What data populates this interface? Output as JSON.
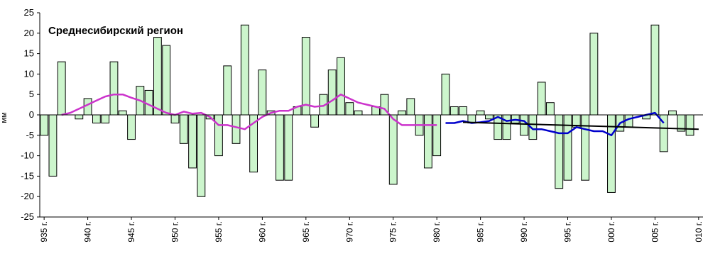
{
  "chart_data": {
    "type": "bar",
    "title": "Среднесибирский регион",
    "xlabel": "",
    "ylabel": "мм",
    "ylim": [
      -25,
      25
    ],
    "yticks": [
      25,
      20,
      15,
      10,
      5,
      0,
      -5,
      -10,
      -15,
      -20,
      -25
    ],
    "xlim": [
      1934.5,
      2010.5
    ],
    "x_tick_years": [
      1935,
      1940,
      1945,
      1950,
      1955,
      1960,
      1965,
      1970,
      1975,
      1980,
      1985,
      1990,
      1995,
      2000,
      2005,
      2010
    ],
    "x_tick_labels": [
      "935 г.",
      "940 г.",
      "945 г.",
      "950 г.",
      "955 г.",
      "960 г.",
      "965 г.",
      "970 г.",
      "975 г.",
      "980 г.",
      "985 г.",
      "990 г.",
      "995 г.",
      "000 г.",
      "005 г.",
      "010 г."
    ],
    "x": [
      1935,
      1936,
      1937,
      1938,
      1939,
      1940,
      1941,
      1942,
      1943,
      1944,
      1945,
      1946,
      1947,
      1948,
      1949,
      1950,
      1951,
      1952,
      1953,
      1954,
      1955,
      1956,
      1957,
      1958,
      1959,
      1960,
      1961,
      1962,
      1963,
      1964,
      1965,
      1966,
      1967,
      1968,
      1969,
      1970,
      1971,
      1972,
      1973,
      1974,
      1975,
      1976,
      1977,
      1978,
      1979,
      1980,
      1981,
      1982,
      1983,
      1984,
      1985,
      1986,
      1987,
      1988,
      1989,
      1990,
      1991,
      1992,
      1993,
      1994,
      1995,
      1996,
      1997,
      1998,
      1999,
      2000,
      2001,
      2002,
      2003,
      2004,
      2005,
      2006,
      2007,
      2008,
      2009,
      2010
    ],
    "values": [
      -5,
      -15,
      13,
      0,
      -1,
      4,
      -2,
      -2,
      13,
      1,
      -6,
      7,
      6,
      19,
      17,
      -2,
      -7,
      -13,
      -20,
      -1,
      -10,
      12,
      -7,
      22,
      -14,
      11,
      1,
      -16,
      -16,
      2,
      19,
      -3,
      5,
      11,
      14,
      3,
      1,
      0,
      2,
      5,
      -17,
      1,
      4,
      -5,
      -13,
      -10,
      10,
      2,
      2,
      -2,
      1,
      -1,
      -6,
      -6,
      -2,
      -5,
      -6,
      8,
      3,
      -18,
      -16,
      -3,
      -16,
      20,
      0,
      -19,
      -4,
      -3,
      0,
      -1,
      22,
      -9,
      1,
      -4,
      -5,
      0
    ],
    "bar_color": "#ccf5cc",
    "bar_edge_color": "#000000",
    "grid": false,
    "series": [
      {
        "type": "line",
        "color": "#cc33cc",
        "x": [
          1937,
          1938,
          1939,
          1940,
          1941,
          1942,
          1943,
          1944,
          1945,
          1946,
          1947,
          1948,
          1949,
          1950,
          1951,
          1952,
          1953,
          1954,
          1955,
          1956,
          1957,
          1958,
          1959,
          1960,
          1961,
          1962,
          1963,
          1964,
          1965,
          1966,
          1967,
          1968,
          1969,
          1970,
          1971,
          1972,
          1973,
          1974,
          1975,
          1976,
          1977,
          1978,
          1979,
          1980
        ],
        "values": [
          0,
          0.5,
          1.5,
          2.5,
          3.5,
          4.5,
          5,
          5,
          4.2,
          3.5,
          2.5,
          1.5,
          0.5,
          0,
          0.8,
          0.3,
          0.5,
          -0.5,
          -2.5,
          -2.5,
          -3,
          -3.5,
          -2,
          -0.5,
          0.5,
          1,
          1,
          2,
          2.5,
          2,
          2.2,
          3.5,
          5,
          4,
          3,
          2.5,
          2,
          1.5,
          -1,
          -2.5,
          -2.5,
          -2.5,
          -2.5,
          -2.5
        ]
      },
      {
        "type": "line",
        "color": "#0000cc",
        "x": [
          1981,
          1982,
          1983,
          1984,
          1985,
          1986,
          1987,
          1988,
          1989,
          1990,
          1991,
          1992,
          1993,
          1994,
          1995,
          1996,
          1997,
          1998,
          1999,
          2000,
          2001,
          2002,
          2003,
          2004,
          2005,
          2006
        ],
        "values": [
          -2,
          -2,
          -1.5,
          -2,
          -1.8,
          -1.5,
          -0.5,
          -1.5,
          -1.2,
          -1.5,
          -3.5,
          -3.5,
          -4,
          -4.5,
          -4.5,
          -3,
          -3.5,
          -4,
          -4,
          -5,
          -2,
          -1,
          -0.5,
          0,
          0.5,
          -2
        ]
      },
      {
        "type": "line",
        "color": "#000000",
        "x": [
          1983,
          2010
        ],
        "values": [
          -1.8,
          -3.5
        ]
      }
    ]
  }
}
